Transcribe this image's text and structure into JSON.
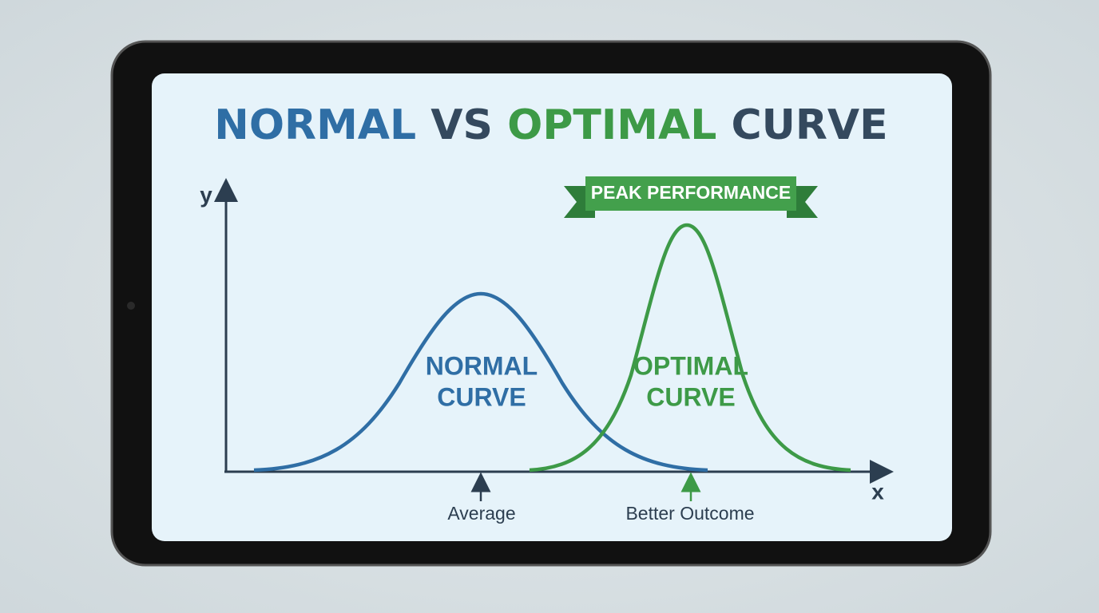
{
  "header": {
    "title": {
      "part1": "NORMAL",
      "part2": "VS",
      "part3": "OPTIMAL",
      "part4": "CURVE"
    }
  },
  "axes": {
    "y_label": "y",
    "x_label": "x"
  },
  "banner": {
    "text": "PEAK PERFORMANCE"
  },
  "curves": [
    {
      "label_lines": [
        "NORMAL",
        "CURVE"
      ]
    },
    {
      "label_lines": [
        "OPTIMAL",
        "CURVE"
      ]
    }
  ],
  "annotations": [
    {
      "text": "Average"
    },
    {
      "text": "Better Outcome"
    }
  ]
}
